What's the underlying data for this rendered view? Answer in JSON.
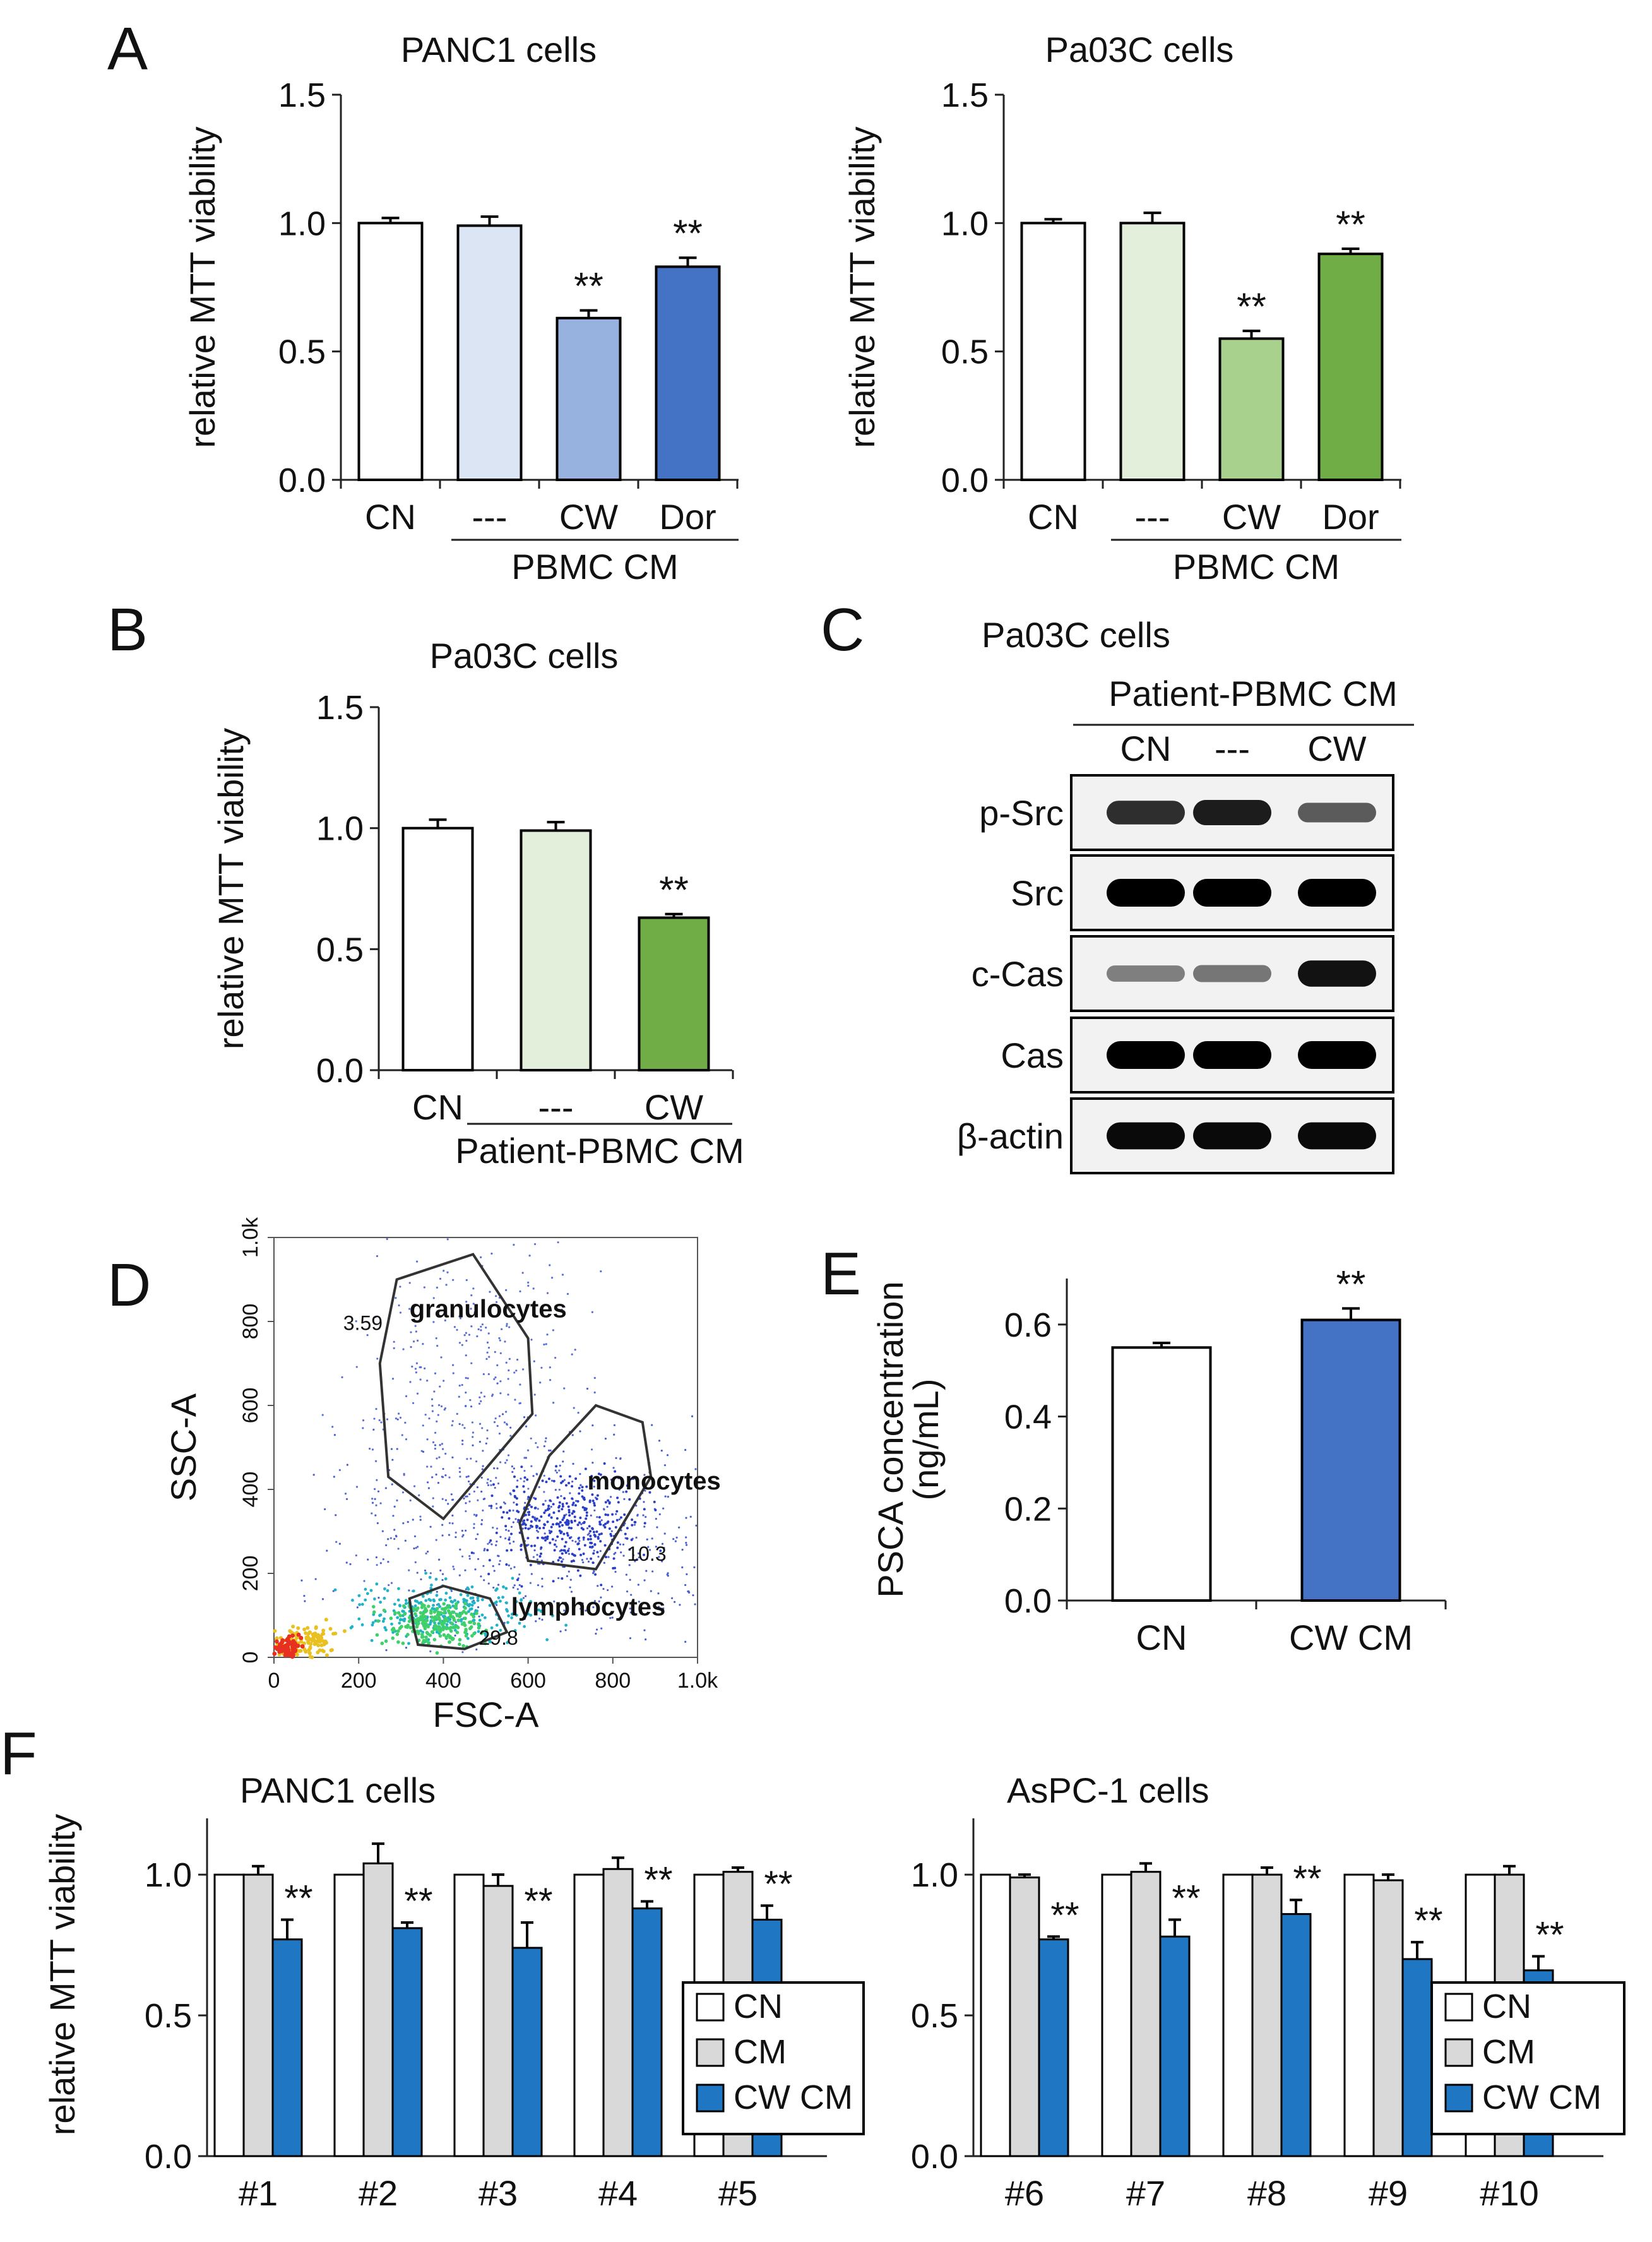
{
  "chart_data": [
    {
      "id": "A1",
      "panel_letter": "A",
      "type": "bar",
      "title": "PANC1 cells",
      "ylabel": "relative MTT viability",
      "ylim": [
        0,
        1.5
      ],
      "yticks": [
        "0.0",
        "0.5",
        "1.0",
        "1.5"
      ],
      "categories": [
        "CN",
        "---",
        "CW",
        "Dor"
      ],
      "values": [
        1.0,
        0.99,
        0.63,
        0.83
      ],
      "errors": [
        0.02,
        0.035,
        0.03,
        0.035
      ],
      "colors": [
        "#ffffff",
        "#dbe5f4",
        "#98b2e0",
        "#4472c4"
      ],
      "significance": [
        "",
        "",
        "**",
        "**"
      ],
      "group_label": "PBMC CM"
    },
    {
      "id": "A2",
      "panel_letter": "",
      "type": "bar",
      "title": "Pa03C cells",
      "ylabel": "relative MTT viability",
      "ylim": [
        0,
        1.5
      ],
      "yticks": [
        "0.0",
        "0.5",
        "1.0",
        "1.5"
      ],
      "categories": [
        "CN",
        "---",
        "CW",
        "Dor"
      ],
      "values": [
        1.0,
        1.0,
        0.55,
        0.88
      ],
      "errors": [
        0.015,
        0.04,
        0.03,
        0.02
      ],
      "colors": [
        "#ffffff",
        "#e3efdb",
        "#a9d18e",
        "#70ad47"
      ],
      "significance": [
        "",
        "",
        "**",
        "**"
      ],
      "group_label": "PBMC CM"
    },
    {
      "id": "B",
      "panel_letter": "B",
      "type": "bar",
      "title": "Pa03C cells",
      "ylabel": "relative MTT viability",
      "ylim": [
        0,
        1.5
      ],
      "yticks": [
        "0.0",
        "0.5",
        "1.0",
        "1.5"
      ],
      "categories": [
        "CN",
        "---",
        "CW"
      ],
      "values": [
        1.0,
        0.99,
        0.63
      ],
      "errors": [
        0.035,
        0.035,
        0.015
      ],
      "colors": [
        "#ffffff",
        "#e3efdb",
        "#70ad47"
      ],
      "significance": [
        "",
        "",
        "**"
      ],
      "group_label": "Patient-PBMC CM"
    },
    {
      "id": "E",
      "panel_letter": "E",
      "type": "bar",
      "title": "",
      "ylabel": "PSCA concentration (ng/mL)",
      "ylim": [
        0,
        0.7
      ],
      "yticks": [
        "0.0",
        "0.2",
        "0.4",
        "0.6"
      ],
      "categories": [
        "CN",
        "CW CM"
      ],
      "values": [
        0.55,
        0.61
      ],
      "errors": [
        0.01,
        0.025
      ],
      "colors": [
        "#ffffff",
        "#4472c4"
      ],
      "significance": [
        "",
        "**"
      ]
    },
    {
      "id": "F1",
      "panel_letter": "F",
      "type": "bar",
      "title": "PANC1 cells",
      "ylabel": "relative MTT viability",
      "ylim": [
        0,
        1.2
      ],
      "yticks": [
        "0.0",
        "0.5",
        "1.0"
      ],
      "categories": [
        "#1",
        "#2",
        "#3",
        "#4",
        "#5"
      ],
      "series": [
        {
          "name": "CN",
          "color": "#ffffff",
          "values": [
            1.0,
            1.0,
            1.0,
            1.0,
            1.0
          ],
          "errors": [
            0,
            0,
            0,
            0,
            0
          ]
        },
        {
          "name": "CM",
          "color": "#d9d9d9",
          "values": [
            1.0,
            1.04,
            0.96,
            1.02,
            1.01
          ],
          "errors": [
            0.03,
            0.07,
            0.04,
            0.04,
            0.015
          ]
        },
        {
          "name": "CW CM",
          "color": "#1f77c4",
          "values": [
            0.77,
            0.81,
            0.74,
            0.88,
            0.84
          ],
          "errors": [
            0.07,
            0.02,
            0.09,
            0.025,
            0.05
          ]
        }
      ],
      "significance": [
        "**",
        "**",
        "**",
        "**",
        "**"
      ],
      "legend": [
        "CN",
        "CM",
        "CW CM"
      ],
      "legend_position": "bottom-right"
    },
    {
      "id": "F2",
      "panel_letter": "",
      "type": "bar",
      "title": "AsPC-1 cells",
      "ylabel": "",
      "ylim": [
        0,
        1.2
      ],
      "yticks": [
        "0.0",
        "0.5",
        "1.0"
      ],
      "categories": [
        "#6",
        "#7",
        "#8",
        "#9",
        "#10"
      ],
      "series": [
        {
          "name": "CN",
          "color": "#ffffff",
          "values": [
            1.0,
            1.0,
            1.0,
            1.0,
            1.0
          ],
          "errors": [
            0,
            0,
            0,
            0,
            0
          ]
        },
        {
          "name": "CM",
          "color": "#d9d9d9",
          "values": [
            0.99,
            1.01,
            1.0,
            0.98,
            1.0
          ],
          "errors": [
            0.01,
            0.03,
            0.025,
            0.02,
            0.03
          ]
        },
        {
          "name": "CW CM",
          "color": "#1f77c4",
          "values": [
            0.77,
            0.78,
            0.86,
            0.7,
            0.66
          ],
          "errors": [
            0.01,
            0.06,
            0.05,
            0.06,
            0.05
          ]
        }
      ],
      "significance": [
        "**",
        "**",
        "**",
        "**",
        "**"
      ],
      "legend": [
        "CN",
        "CM",
        "CW CM"
      ],
      "legend_position": "bottom-right"
    },
    {
      "id": "D",
      "panel_letter": "D",
      "type": "scatter",
      "title": "",
      "xlabel": "FSC-A",
      "ylabel": "SSC-A",
      "xlim": [
        0,
        1000
      ],
      "ylim": [
        0,
        1000
      ],
      "xticks": [
        "0",
        "200",
        "400",
        "600",
        "800",
        "1.0k"
      ],
      "yticks": [
        "0",
        "200",
        "400",
        "600",
        "800",
        "1.0k"
      ],
      "gates": [
        {
          "label": "granulocytes",
          "percent": "3.59"
        },
        {
          "label": "monocytes",
          "percent": "10.3"
        },
        {
          "label": "lymphocytes",
          "percent": "29.8"
        }
      ]
    }
  ],
  "western_blot": {
    "panel_letter": "C",
    "title": "Pa03C cells",
    "group_label": "Patient-PBMC CM",
    "lanes": [
      "CN",
      "---",
      "CW"
    ],
    "rows": [
      {
        "label": "p-Src",
        "intensities": [
          0.75,
          0.85,
          0.5
        ]
      },
      {
        "label": "Src",
        "intensities": [
          1.0,
          1.0,
          1.0
        ]
      },
      {
        "label": "c-Cas",
        "intensities": [
          0.3,
          0.35,
          0.9
        ]
      },
      {
        "label": "Cas",
        "intensities": [
          1.0,
          1.0,
          1.0
        ]
      },
      {
        "label": "β-actin",
        "intensities": [
          0.95,
          0.95,
          0.95
        ]
      }
    ]
  }
}
